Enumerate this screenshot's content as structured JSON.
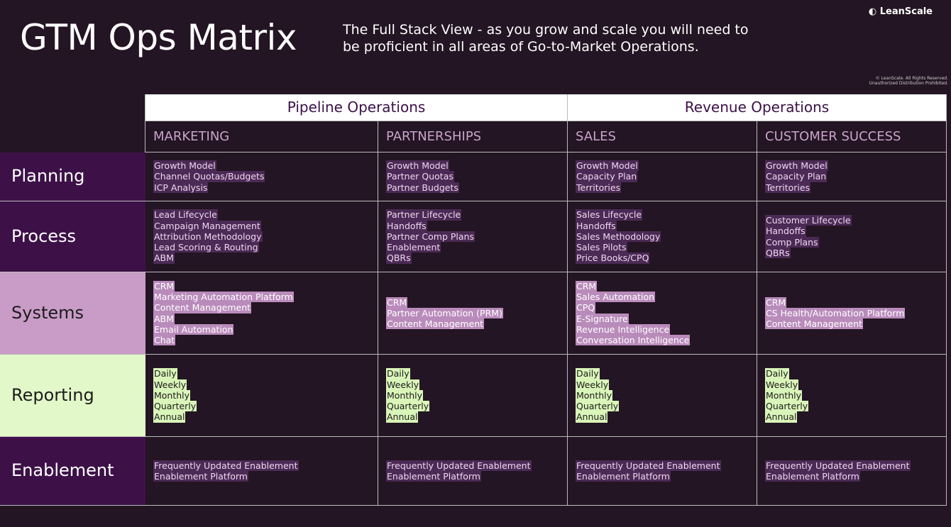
{
  "header": {
    "title": "GTM Ops Matrix",
    "subtitle": "The Full Stack View - as you grow and scale you will need to be proficient in all areas of Go-to-Market Operations.",
    "brand": "LeanScale",
    "copyright": [
      "© LeanScale. All Rights Reserved.",
      "Unauthorized Distribution Prohibited."
    ]
  },
  "table": {
    "groups": [
      "Pipeline Operations",
      "Revenue Operations"
    ],
    "columns": [
      "MARKETING",
      "PARTNERSHIPS",
      "SALES",
      "CUSTOMER SUCCESS"
    ],
    "rows": [
      {
        "label": "Planning",
        "cells": [
          [
            "Growth Model",
            "Channel Quotas/Budgets",
            "ICP Analysis"
          ],
          [
            "Growth Model",
            "Partner Quotas",
            "Partner Budgets"
          ],
          [
            "Growth Model",
            "Capacity Plan",
            "Territories"
          ],
          [
            "Growth Model",
            "Capacity Plan",
            "Territories"
          ]
        ]
      },
      {
        "label": "Process",
        "cells": [
          [
            "Lead Lifecycle",
            "Campaign Management",
            "Attribution Methodology",
            "Lead Scoring & Routing",
            "ABM"
          ],
          [
            "Partner Lifecycle",
            "Handoffs",
            "Partner Comp Plans",
            "Enablement",
            "QBRs"
          ],
          [
            "Sales Lifecycle",
            "Handoffs",
            "Sales Methodology",
            "Sales Pilots",
            "Price Books/CPQ"
          ],
          [
            "Customer Lifecycle",
            "Handoffs",
            "Comp Plans",
            "QBRs"
          ]
        ]
      },
      {
        "label": "Systems",
        "cells": [
          [
            "CRM",
            "Marketing Automation Platform",
            "Content Management",
            "ABM",
            "Email Automation",
            "Chat"
          ],
          [
            "CRM",
            "Partner Automation (PRM)",
            "Content Management"
          ],
          [
            "CRM",
            "Sales Automation",
            "CPQ",
            "E-Signature",
            "Revenue Intelligence",
            "Conversation Intelligence"
          ],
          [
            "CRM",
            "CS Health/Automation Platform",
            "Content Management"
          ]
        ]
      },
      {
        "label": "Reporting",
        "cells": [
          [
            "Daily",
            "Weekly",
            "Monthly",
            "Quarterly",
            "Annual"
          ],
          [
            "Daily",
            "Weekly",
            "Monthly",
            "Quarterly",
            "Annual"
          ],
          [
            "Daily",
            "Weekly",
            "Monthly",
            "Quarterly",
            "Annual"
          ],
          [
            "Daily",
            "Weekly",
            "Monthly",
            "Quarterly",
            "Annual"
          ]
        ]
      },
      {
        "label": "Enablement",
        "cells": [
          [
            "Frequently Updated Enablement",
            "Enablement Platform"
          ],
          [
            "Frequently Updated Enablement",
            "Enablement Platform"
          ],
          [
            "Frequently Updated Enablement",
            "Enablement Platform"
          ],
          [
            "Frequently Updated Enablement",
            "Enablement Platform"
          ]
        ]
      }
    ]
  }
}
